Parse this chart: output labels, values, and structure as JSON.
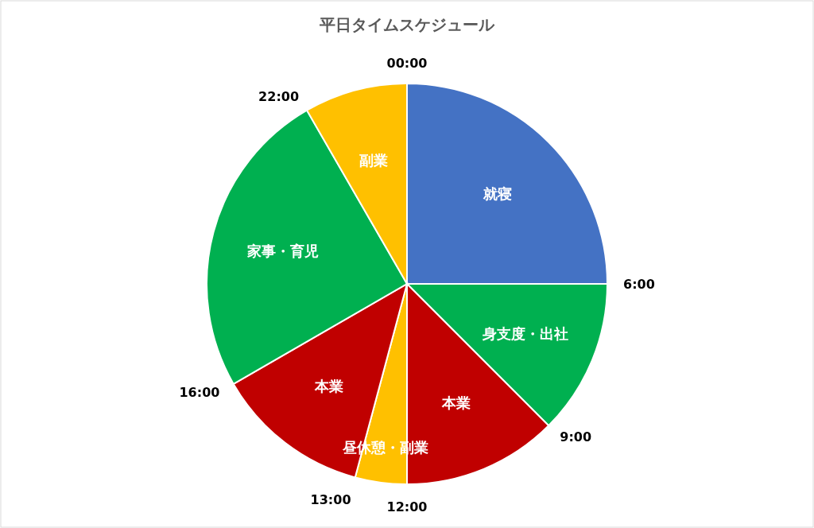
{
  "chart_data": {
    "type": "pie",
    "title": "平日タイムスケジュール",
    "categories": [
      "就寝",
      "身支度・出社",
      "本業",
      "昼休憩・副業",
      "本業",
      "家事・育児",
      "副業"
    ],
    "values": [
      25,
      12.5,
      12.5,
      4.17,
      12.5,
      25,
      8.33
    ],
    "colors": [
      "#4472c4",
      "#00b050",
      "#c00000",
      "#ffc000",
      "#c00000",
      "#00b050",
      "#ffc000"
    ],
    "annotations": [
      "00:00",
      "6:00",
      "9:00",
      "12:00",
      "13:00",
      "16:00",
      "22:00"
    ]
  }
}
